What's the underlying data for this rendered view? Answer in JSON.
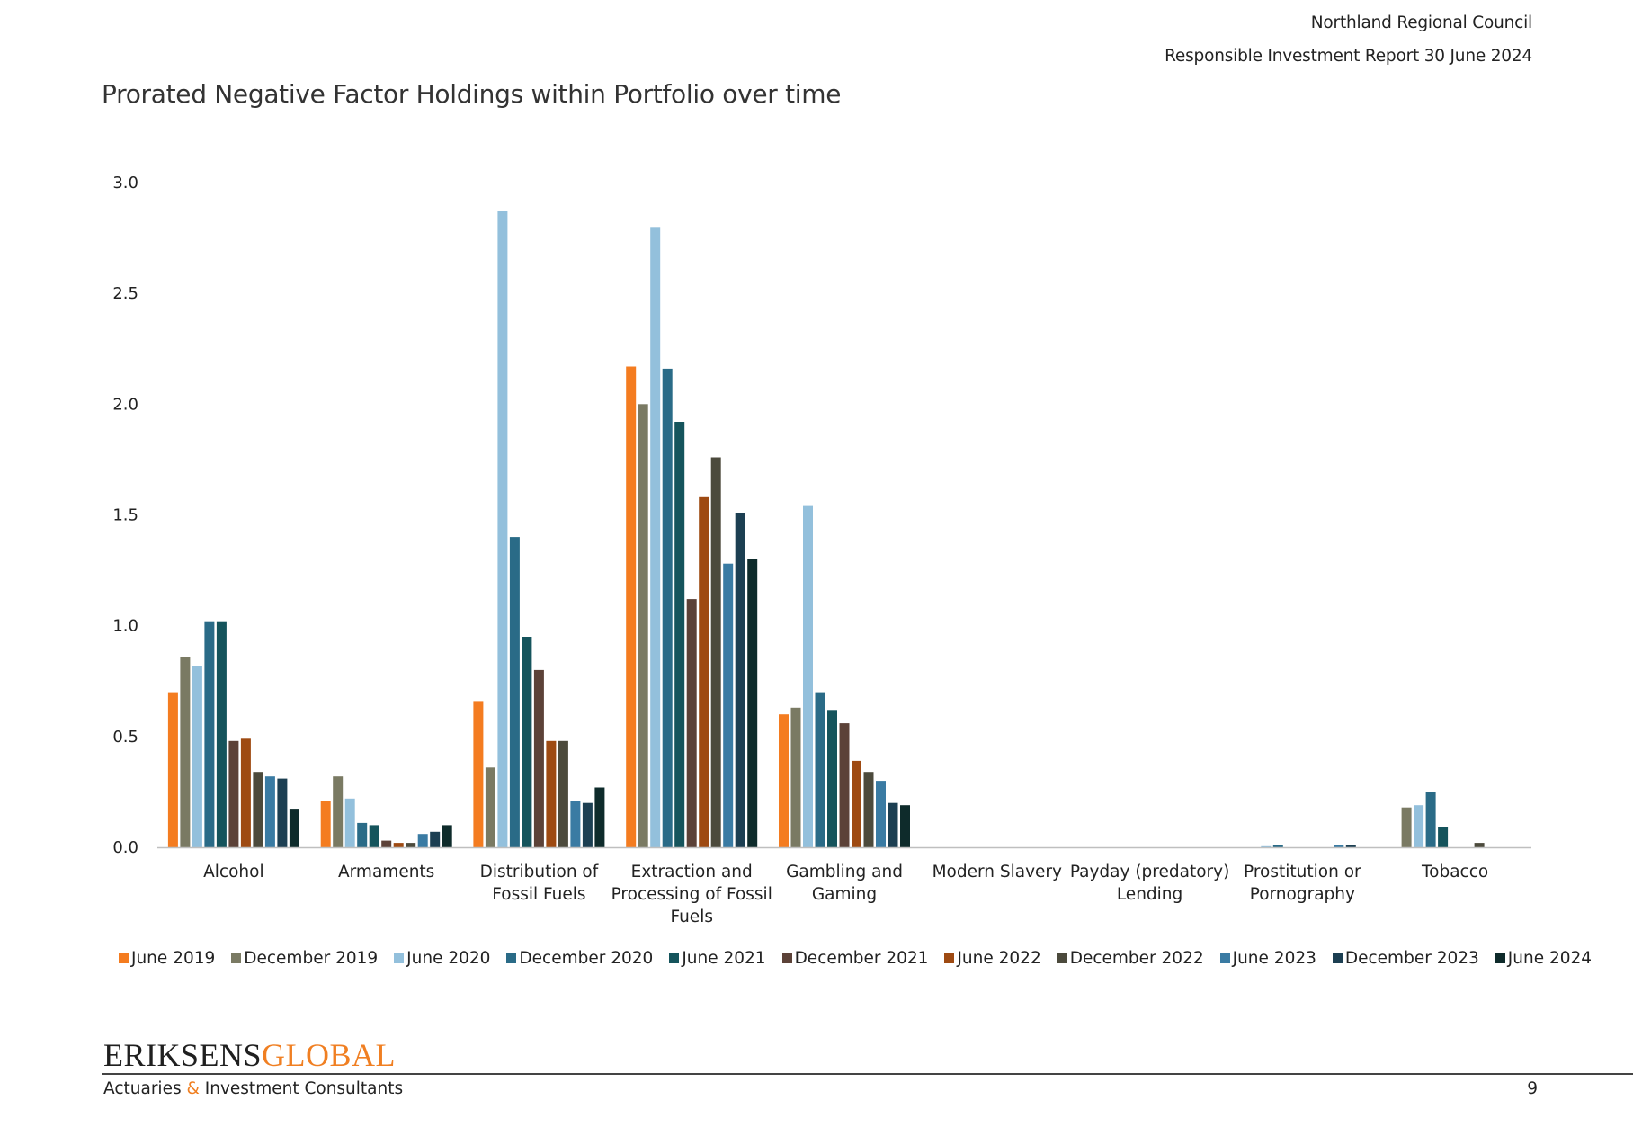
{
  "header": {
    "organization": "Northland Regional Council",
    "report": "Responsible Investment Report 30 June 2024"
  },
  "chart_data": {
    "type": "bar",
    "title": "Prorated Negative Factor Holdings within Portfolio over time",
    "xlabel": "",
    "ylabel": "",
    "ylim": [
      0,
      3
    ],
    "yticks": [
      "0.0",
      "0.5",
      "1.0",
      "1.5",
      "2.0",
      "2.5",
      "3.0"
    ],
    "grid": false,
    "legend_position": "bottom",
    "categories": [
      [
        "Alcohol"
      ],
      [
        "Armaments"
      ],
      [
        "Distribution of",
        "Fossil Fuels"
      ],
      [
        "Extraction and",
        "Processing of Fossil",
        "Fuels"
      ],
      [
        "Gambling and",
        "Gaming"
      ],
      [
        "Modern Slavery"
      ],
      [
        "Payday (predatory)",
        "Lending"
      ],
      [
        "Prostitution or",
        "Pornography"
      ],
      [
        "Tobacco"
      ]
    ],
    "series": [
      {
        "name": "June 2019",
        "color": "#f47c20",
        "values": [
          0.7,
          0.21,
          0.66,
          2.17,
          0.6,
          0,
          0,
          0,
          0
        ]
      },
      {
        "name": "December 2019",
        "color": "#7a7a63",
        "values": [
          0.86,
          0.32,
          0.36,
          2.0,
          0.63,
          0,
          0,
          0,
          0.18
        ]
      },
      {
        "name": "June 2020",
        "color": "#93c0dc",
        "values": [
          0.82,
          0.22,
          2.87,
          2.8,
          1.54,
          0,
          0,
          0.005,
          0.19
        ]
      },
      {
        "name": "December 2020",
        "color": "#2a6b87",
        "values": [
          1.02,
          0.11,
          1.4,
          2.16,
          0.7,
          0,
          0,
          0.01,
          0.25
        ]
      },
      {
        "name": "June 2021",
        "color": "#15545c",
        "values": [
          1.02,
          0.1,
          0.95,
          1.92,
          0.62,
          0,
          0,
          0,
          0.09
        ]
      },
      {
        "name": "December 2021",
        "color": "#5c4238",
        "values": [
          0.48,
          0.03,
          0.8,
          1.12,
          0.56,
          0,
          0,
          0,
          0
        ]
      },
      {
        "name": "June 2022",
        "color": "#9e4a12",
        "values": [
          0.49,
          0.02,
          0.48,
          1.58,
          0.39,
          0,
          0,
          0,
          0
        ]
      },
      {
        "name": "December 2022",
        "color": "#4c4a3c",
        "values": [
          0.34,
          0.02,
          0.48,
          1.76,
          0.34,
          0,
          0,
          0,
          0.02
        ]
      },
      {
        "name": "June 2023",
        "color": "#3a7ba3",
        "values": [
          0.32,
          0.06,
          0.21,
          1.28,
          0.3,
          0,
          0,
          0.01,
          0
        ]
      },
      {
        "name": "December 2023",
        "color": "#1c3f52",
        "values": [
          0.31,
          0.07,
          0.2,
          1.51,
          0.2,
          0,
          0,
          0.01,
          0
        ]
      },
      {
        "name": "June 2024",
        "color": "#0e2b2b",
        "values": [
          0.17,
          0.1,
          0.27,
          1.3,
          0.19,
          0,
          0,
          0,
          0
        ]
      }
    ]
  },
  "footer": {
    "logo_primary": "ERIKSENS",
    "logo_secondary": "GLOBAL",
    "tagline_a": "Actuaries ",
    "tagline_amp": "&",
    "tagline_b": " Investment Consultants",
    "page_number": "9"
  },
  "colors": {
    "brand_orange": "#f07f22",
    "axis": "#bfbfbf"
  }
}
